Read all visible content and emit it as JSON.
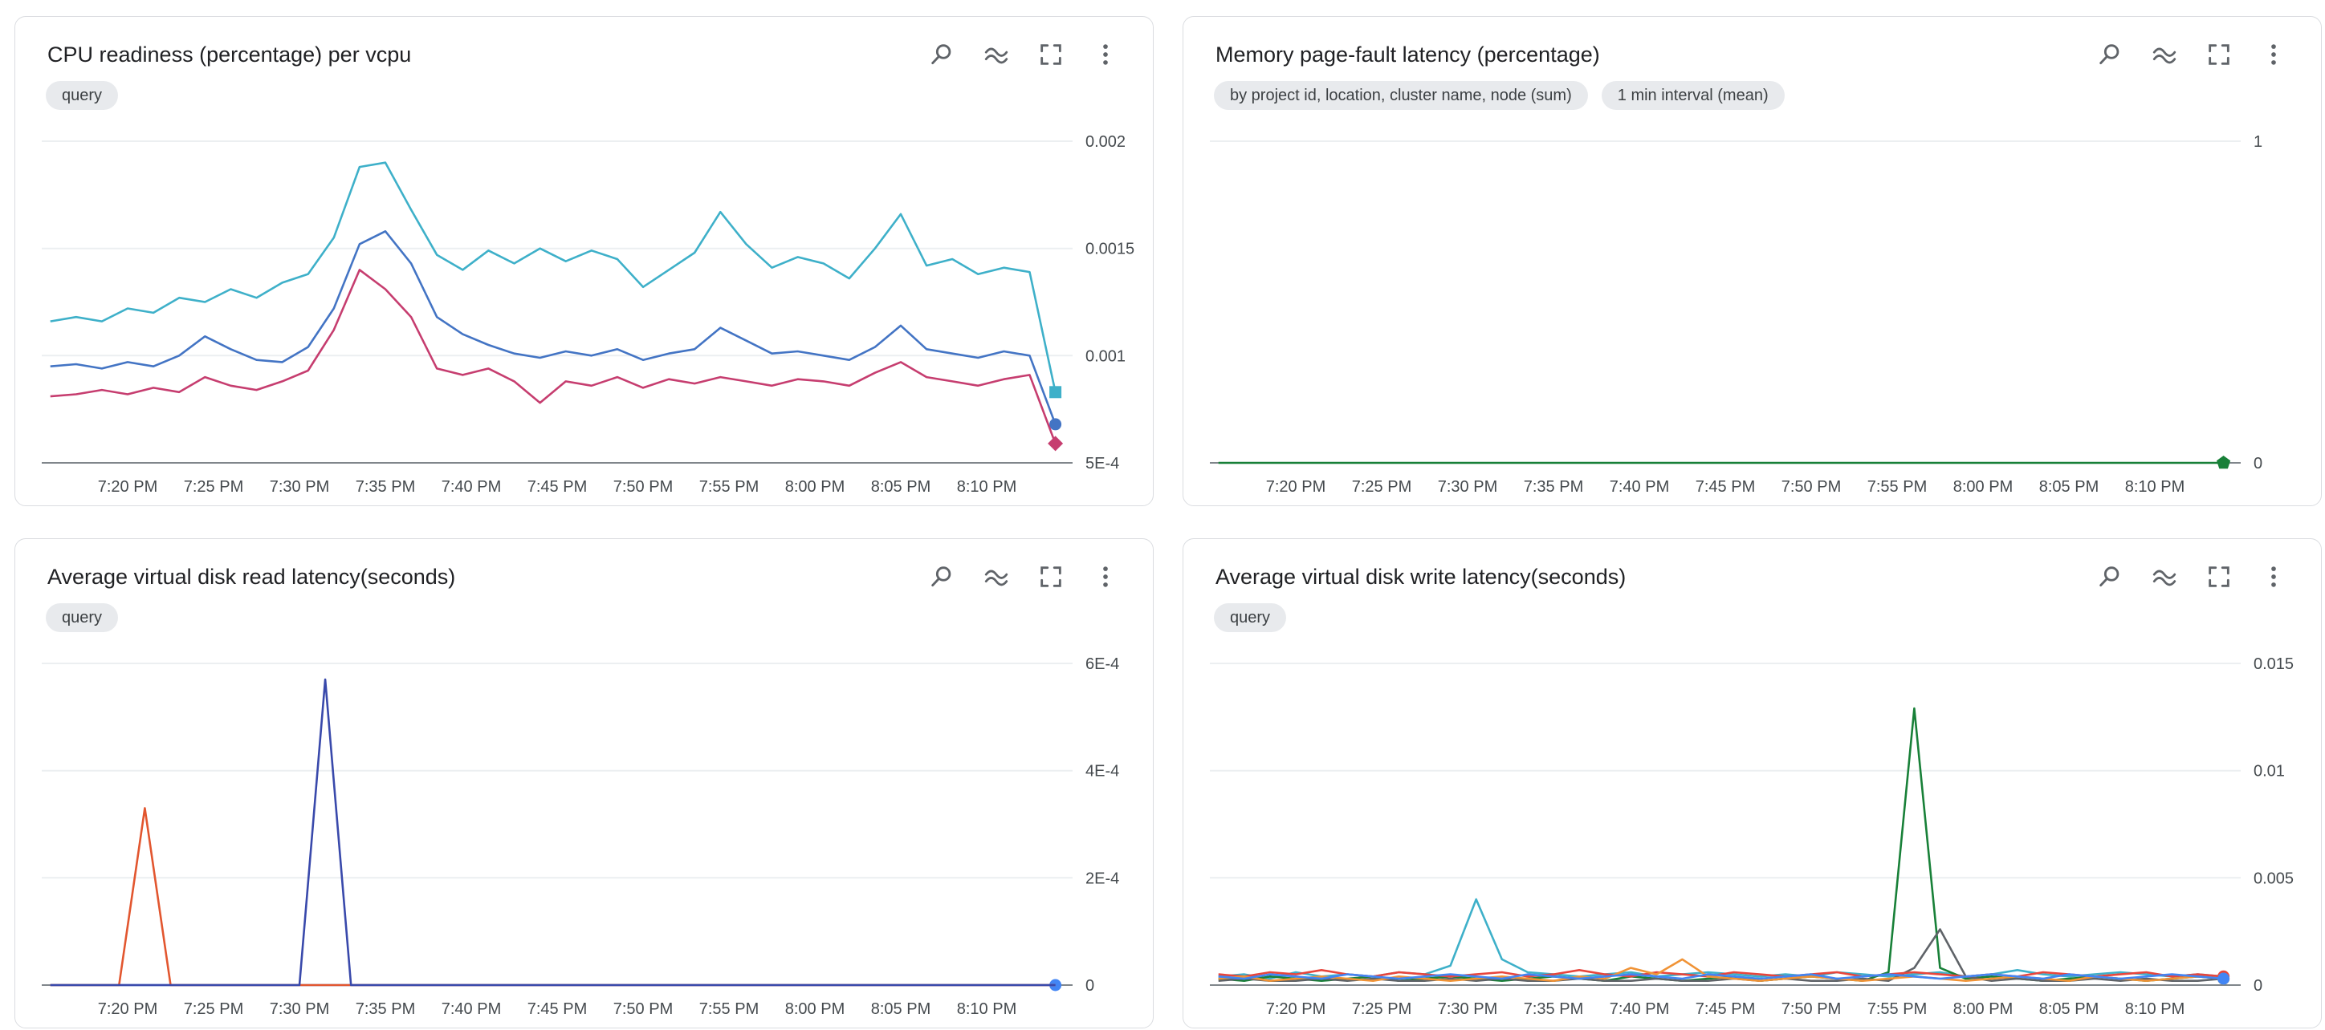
{
  "ui_colors": {
    "card_border": "#dadce0",
    "chip_bg": "#e8eaed",
    "icon": "#5f6368",
    "title": "#202124",
    "tick": "#454a4e",
    "axis": "#80868b",
    "gridline": "#eceff1"
  },
  "toolbar_icons": [
    "query-magnifier-icon",
    "chart-options-waves-icon",
    "fullscreen-icon",
    "more-options-icon"
  ],
  "cards": [
    {
      "title": "CPU readiness (percentage) per vcpu",
      "chips": [
        "query"
      ]
    },
    {
      "title": "Memory page-fault latency (percentage)",
      "chips": [
        "by project id, location, cluster name, node (sum)",
        "1 min interval (mean)"
      ]
    },
    {
      "title": "Average virtual disk read latency(seconds)",
      "chips": [
        "query"
      ]
    },
    {
      "title": "Average virtual disk write latency(seconds)",
      "chips": [
        "query"
      ]
    }
  ],
  "time_axis": {
    "range": [
      0,
      60
    ],
    "ticks": [
      {
        "m": 5,
        "label": "7:20 PM"
      },
      {
        "m": 10,
        "label": "7:25 PM"
      },
      {
        "m": 15,
        "label": "7:30 PM"
      },
      {
        "m": 20,
        "label": "7:35 PM"
      },
      {
        "m": 25,
        "label": "7:40 PM"
      },
      {
        "m": 30,
        "label": "7:45 PM"
      },
      {
        "m": 35,
        "label": "7:50 PM"
      },
      {
        "m": 40,
        "label": "7:55 PM"
      },
      {
        "m": 45,
        "label": "8:00 PM"
      },
      {
        "m": 50,
        "label": "8:05 PM"
      },
      {
        "m": 55,
        "label": "8:10 PM"
      }
    ]
  },
  "x_shared": [
    0.5,
    2,
    3.5,
    5,
    6.5,
    8,
    9.5,
    11,
    12.5,
    14,
    15.5,
    17,
    18.5,
    20,
    21.5,
    23,
    24.5,
    26,
    27.5,
    29,
    30.5,
    32,
    33.5,
    35,
    36.5,
    38,
    39.5,
    41,
    42.5,
    44,
    45.5,
    47,
    48.5,
    50,
    51.5,
    53,
    54.5,
    56,
    57.5,
    59
  ],
  "chart_data": [
    {
      "type": "line",
      "title": "CPU readiness (percentage) per vcpu",
      "xlabel": "",
      "ylabel": "",
      "y_range": [
        0.0005,
        0.002
      ],
      "y_ticks": [
        {
          "label": "0.002",
          "value": 0.002
        },
        {
          "label": "0.0015",
          "value": 0.0015
        },
        {
          "label": "0.001",
          "value": 0.001
        },
        {
          "label": "5E-4",
          "value": 0.0005
        }
      ],
      "series": [
        {
          "name": "vcpu-cyan",
          "color": "#3eb0c9",
          "marker": "square",
          "y": [
            0.00116,
            0.00118,
            0.00116,
            0.00122,
            0.0012,
            0.00127,
            0.00125,
            0.00131,
            0.00127,
            0.00134,
            0.00138,
            0.00155,
            0.00188,
            0.0019,
            0.00168,
            0.00147,
            0.0014,
            0.00149,
            0.00143,
            0.0015,
            0.00144,
            0.00149,
            0.00145,
            0.00132,
            0.0014,
            0.00148,
            0.00167,
            0.00152,
            0.00141,
            0.00146,
            0.00143,
            0.00136,
            0.0015,
            0.00166,
            0.00142,
            0.00145,
            0.00138,
            0.00141,
            0.00139,
            0.00083
          ]
        },
        {
          "name": "vcpu-blue",
          "color": "#4374c4",
          "marker": "circle",
          "y": [
            0.00095,
            0.00096,
            0.00094,
            0.00097,
            0.00095,
            0.001,
            0.00109,
            0.00103,
            0.00098,
            0.00097,
            0.00104,
            0.00122,
            0.00152,
            0.00158,
            0.00143,
            0.00118,
            0.0011,
            0.00105,
            0.00101,
            0.00099,
            0.00102,
            0.001,
            0.00103,
            0.00098,
            0.00101,
            0.00103,
            0.00113,
            0.00107,
            0.00101,
            0.00102,
            0.001,
            0.00098,
            0.00104,
            0.00114,
            0.00103,
            0.00101,
            0.00099,
            0.00102,
            0.001,
            0.00068
          ]
        },
        {
          "name": "vcpu-magenta",
          "color": "#c63d6f",
          "marker": "diamond",
          "y": [
            0.00081,
            0.00082,
            0.00084,
            0.00082,
            0.00085,
            0.00083,
            0.0009,
            0.00086,
            0.00084,
            0.00088,
            0.00093,
            0.00112,
            0.0014,
            0.00131,
            0.00118,
            0.00094,
            0.00091,
            0.00094,
            0.00088,
            0.00078,
            0.00088,
            0.00086,
            0.0009,
            0.00085,
            0.00089,
            0.00087,
            0.0009,
            0.00088,
            0.00086,
            0.00089,
            0.00088,
            0.00086,
            0.00092,
            0.00097,
            0.0009,
            0.00088,
            0.00086,
            0.00089,
            0.00091,
            0.00059
          ]
        }
      ]
    },
    {
      "type": "line",
      "title": "Memory page-fault latency (percentage)",
      "xlabel": "",
      "ylabel": "",
      "y_range": [
        0,
        1
      ],
      "y_ticks": [
        {
          "label": "1",
          "value": 1
        },
        {
          "label": "0",
          "value": 0
        }
      ],
      "series": [
        {
          "name": "node-sum",
          "color": "#188038",
          "marker": "pentagon",
          "x": [
            0.5,
            59
          ],
          "y": [
            0,
            0
          ]
        }
      ]
    },
    {
      "type": "line",
      "title": "Average virtual disk read latency(seconds)",
      "xlabel": "",
      "ylabel": "",
      "y_range": [
        0,
        0.0006
      ],
      "y_ticks": [
        {
          "label": "6E-4",
          "value": 0.0006
        },
        {
          "label": "4E-4",
          "value": 0.0004
        },
        {
          "label": "2E-4",
          "value": 0.0002
        },
        {
          "label": "0",
          "value": 0
        }
      ],
      "series": [
        {
          "name": "disk-read-baseline",
          "color": "#4285f4",
          "marker": "circle",
          "x": [
            0.5,
            59
          ],
          "y": [
            0,
            0
          ]
        },
        {
          "name": "disk-read-spike-red",
          "color": "#e2562f",
          "x": [
            0.5,
            4.5,
            6,
            7.5,
            59
          ],
          "y": [
            0,
            0,
            0.00033,
            0,
            0
          ]
        },
        {
          "name": "disk-read-spike-indigo",
          "color": "#3949ab",
          "x": [
            0.5,
            15,
            16.5,
            18,
            59
          ],
          "y": [
            0,
            0,
            0.00057,
            0,
            0
          ]
        }
      ]
    },
    {
      "type": "line",
      "title": "Average virtual disk write latency(seconds)",
      "xlabel": "",
      "ylabel": "",
      "y_range": [
        0,
        0.015
      ],
      "y_ticks": [
        {
          "label": "0.015",
          "value": 0.015
        },
        {
          "label": "0.01",
          "value": 0.01
        },
        {
          "label": "0.005",
          "value": 0.005
        },
        {
          "label": "0",
          "value": 0
        }
      ],
      "series": [
        {
          "name": "disk-write-cyan",
          "color": "#3eb0c9",
          "y": [
            0.0004,
            0.0005,
            0.0003,
            0.0006,
            0.0004,
            0.0005,
            0.0004,
            0.0006,
            0.0005,
            0.0009,
            0.004,
            0.0012,
            0.0006,
            0.0005,
            0.0004,
            0.0005,
            0.0006,
            0.0004,
            0.0005,
            0.0006,
            0.0005,
            0.0004,
            0.0005,
            0.0004,
            0.0006,
            0.0005,
            0.0004,
            0.0005,
            0.0006,
            0.0004,
            0.0005,
            0.0007,
            0.0005,
            0.0004,
            0.0005,
            0.0006,
            0.0005,
            0.0004,
            0.0005,
            0.0004
          ]
        },
        {
          "name": "disk-write-green",
          "color": "#188038",
          "marker": "circle",
          "y": [
            0.0003,
            0.0002,
            0.0004,
            0.0003,
            0.0002,
            0.0003,
            0.0004,
            0.0002,
            0.0003,
            0.0004,
            0.0003,
            0.0002,
            0.0003,
            0.0004,
            0.0003,
            0.0002,
            0.0004,
            0.0003,
            0.0002,
            0.0003,
            0.0004,
            0.0002,
            0.0003,
            0.0004,
            0.0003,
            0.0002,
            0.0006,
            0.0129,
            0.0008,
            0.0003,
            0.0004,
            0.0003,
            0.0002,
            0.0003,
            0.0004,
            0.0003,
            0.0002,
            0.0003,
            0.0004,
            0.0003
          ]
        },
        {
          "name": "disk-write-gray",
          "color": "#5f6368",
          "y": [
            0.0002,
            0.0003,
            0.0002,
            0.0002,
            0.0003,
            0.0002,
            0.0003,
            0.0002,
            0.0002,
            0.0003,
            0.0002,
            0.0003,
            0.0002,
            0.0002,
            0.0003,
            0.0002,
            0.0002,
            0.0003,
            0.0002,
            0.0002,
            0.0003,
            0.0002,
            0.0003,
            0.0002,
            0.0002,
            0.0003,
            0.0002,
            0.0008,
            0.0026,
            0.0004,
            0.0002,
            0.0003,
            0.0002,
            0.0002,
            0.0003,
            0.0002,
            0.0003,
            0.0002,
            0.0002,
            0.0003
          ]
        },
        {
          "name": "disk-write-red",
          "color": "#e8453c",
          "marker": "circle",
          "y": [
            0.0005,
            0.0004,
            0.0006,
            0.0005,
            0.0007,
            0.0005,
            0.0004,
            0.0006,
            0.0005,
            0.0004,
            0.0005,
            0.0006,
            0.0004,
            0.0005,
            0.0007,
            0.0005,
            0.0004,
            0.0006,
            0.0005,
            0.0004,
            0.0006,
            0.0005,
            0.0004,
            0.0005,
            0.0006,
            0.0004,
            0.0005,
            0.0006,
            0.0005,
            0.0004,
            0.0005,
            0.0004,
            0.0006,
            0.0005,
            0.0004,
            0.0005,
            0.0006,
            0.0004,
            0.0005,
            0.0004
          ]
        },
        {
          "name": "disk-write-orange",
          "color": "#f09336",
          "marker": "circle",
          "y": [
            0.0003,
            0.0004,
            0.0002,
            0.0003,
            0.0004,
            0.0003,
            0.0002,
            0.0004,
            0.0003,
            0.0002,
            0.0003,
            0.0004,
            0.0003,
            0.0002,
            0.0004,
            0.0003,
            0.0008,
            0.0005,
            0.0012,
            0.0004,
            0.0003,
            0.0002,
            0.0003,
            0.0004,
            0.0003,
            0.0002,
            0.0003,
            0.0004,
            0.0003,
            0.0002,
            0.0003,
            0.0004,
            0.0003,
            0.0002,
            0.0004,
            0.0003,
            0.0002,
            0.0003,
            0.0004,
            0.0003
          ]
        },
        {
          "name": "disk-write-blue",
          "color": "#4285f4",
          "marker": "circle",
          "y": [
            0.0004,
            0.0003,
            0.0005,
            0.0004,
            0.0003,
            0.0005,
            0.0004,
            0.0003,
            0.0004,
            0.0005,
            0.0004,
            0.0003,
            0.0005,
            0.0004,
            0.0003,
            0.0004,
            0.0005,
            0.0004,
            0.0003,
            0.0005,
            0.0004,
            0.0003,
            0.0004,
            0.0005,
            0.0003,
            0.0004,
            0.0005,
            0.0004,
            0.0003,
            0.0004,
            0.0005,
            0.0004,
            0.0003,
            0.0005,
            0.0004,
            0.0003,
            0.0004,
            0.0005,
            0.0004,
            0.0003
          ]
        }
      ]
    }
  ]
}
